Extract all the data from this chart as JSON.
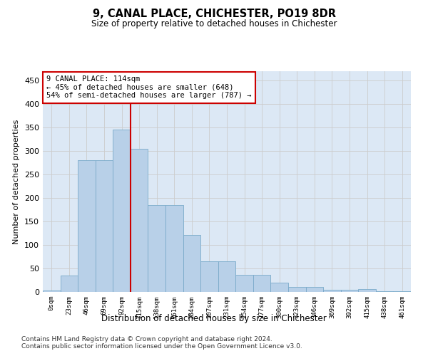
{
  "title1": "9, CANAL PLACE, CHICHESTER, PO19 8DR",
  "title2": "Size of property relative to detached houses in Chichester",
  "xlabel": "Distribution of detached houses by size in Chichester",
  "ylabel": "Number of detached properties",
  "bar_color": "#b8d0e8",
  "bar_edge_color": "#7aaaca",
  "vline_color": "#cc0000",
  "vline_x_idx": 4,
  "annotation_text": "9 CANAL PLACE: 114sqm\n← 45% of detached houses are smaller (648)\n54% of semi-detached houses are larger (787) →",
  "annotation_box_color": "white",
  "annotation_box_edge": "#cc0000",
  "categories": [
    "0sqm",
    "23sqm",
    "46sqm",
    "69sqm",
    "92sqm",
    "115sqm",
    "138sqm",
    "161sqm",
    "184sqm",
    "207sqm",
    "231sqm",
    "254sqm",
    "277sqm",
    "300sqm",
    "323sqm",
    "346sqm",
    "369sqm",
    "392sqm",
    "415sqm",
    "438sqm",
    "461sqm"
  ],
  "bar_heights": [
    3,
    35,
    280,
    280,
    345,
    305,
    185,
    185,
    122,
    65,
    65,
    36,
    36,
    19,
    10,
    10,
    5,
    5,
    6,
    2,
    1
  ],
  "ylim": [
    0,
    470
  ],
  "yticks": [
    0,
    50,
    100,
    150,
    200,
    250,
    300,
    350,
    400,
    450
  ],
  "grid_color": "#cccccc",
  "bg_color": "#dce8f5",
  "footer1": "Contains HM Land Registry data © Crown copyright and database right 2024.",
  "footer2": "Contains public sector information licensed under the Open Government Licence v3.0."
}
